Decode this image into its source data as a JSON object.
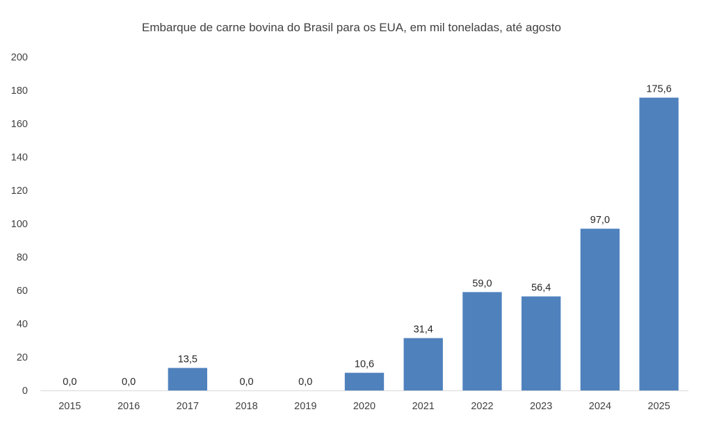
{
  "chart_data": {
    "type": "bar",
    "title": "Embarque de carne bovina do Brasil para os EUA, em mil toneladas, até agosto",
    "xlabel": "",
    "ylabel": "",
    "categories": [
      "2015",
      "2016",
      "2017",
      "2018",
      "2019",
      "2020",
      "2021",
      "2022",
      "2023",
      "2024",
      "2025"
    ],
    "values": [
      0.0,
      0.0,
      13.5,
      0.0,
      0.0,
      10.6,
      31.4,
      59.0,
      56.4,
      97.0,
      175.6
    ],
    "data_labels": [
      "0,0",
      "0,0",
      "13,5",
      "0,0",
      "0,0",
      "10,6",
      "31,4",
      "59,0",
      "56,4",
      "97,0",
      "175,6"
    ],
    "ylim": [
      0,
      200
    ],
    "yticks": [
      0,
      20,
      40,
      60,
      80,
      100,
      120,
      140,
      160,
      180,
      200
    ],
    "grid": false,
    "legend": "none",
    "bar_color": "#4f81bd",
    "axis_color": "#d9d9d9"
  }
}
